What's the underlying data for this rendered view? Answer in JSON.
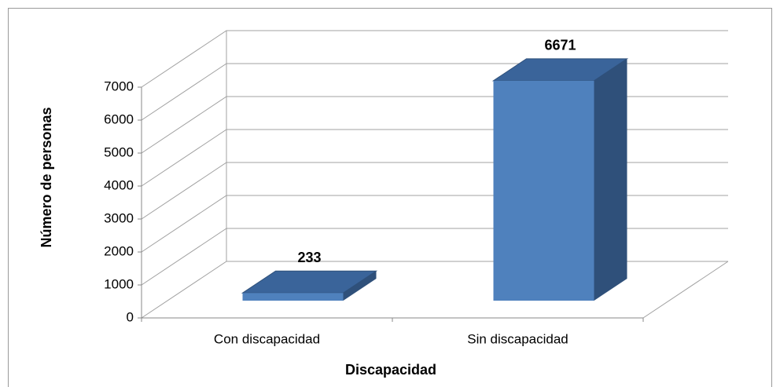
{
  "chart_data": {
    "type": "bar",
    "xlabel": "Discapacidad",
    "ylabel": "Número de personas",
    "categories": [
      "Con discapacidad",
      "Sin discapacidad"
    ],
    "values": [
      233,
      6671
    ],
    "color": "#4f81bd",
    "ylim": [
      0,
      7000
    ],
    "yticks": [
      0,
      1000,
      2000,
      3000,
      4000,
      5000,
      6000,
      7000
    ],
    "grid": true
  }
}
